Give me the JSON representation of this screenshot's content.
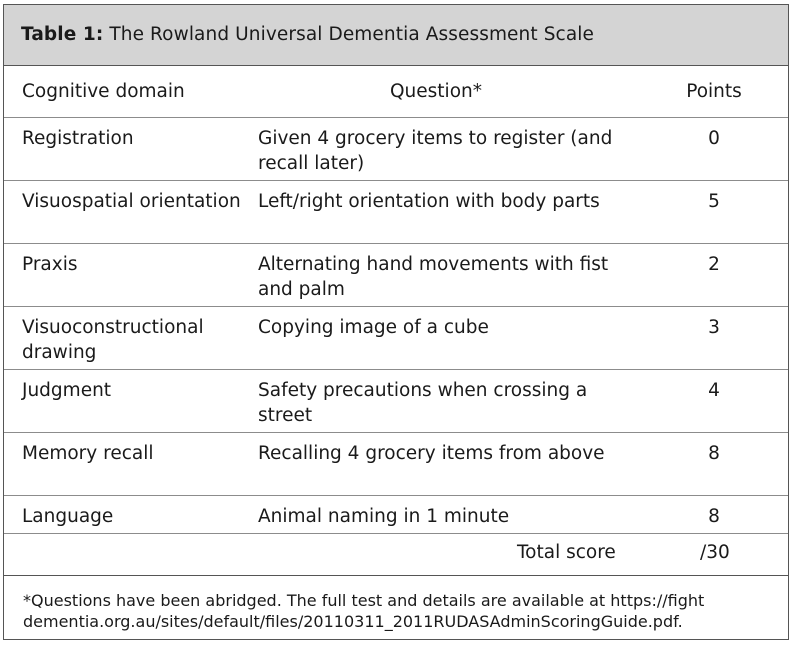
{
  "title": {
    "label": "Table 1:",
    "text": "The Rowland Universal Dementia Assessment Scale"
  },
  "headers": {
    "domain": "Cognitive domain",
    "question": "Question*",
    "points": "Points"
  },
  "rows": [
    {
      "domain": "Registration",
      "question": "Given 4 grocery items to register (and recall later)",
      "points": "0"
    },
    {
      "domain": "Visuospatial orientation",
      "question": "Left/right orientation with body parts",
      "points": "5"
    },
    {
      "domain": "Praxis",
      "question": "Alternating hand movements with fist and palm",
      "points": "2"
    },
    {
      "domain": "Visuoconstructional drawing",
      "question": "Copying image of a cube",
      "points": "3"
    },
    {
      "domain": "Judgment",
      "question": "Safety precautions when crossing a street",
      "points": "4"
    },
    {
      "domain": "Memory recall",
      "question": "Recalling 4 grocery items from above",
      "points": "8"
    },
    {
      "domain": "Language",
      "question": "Animal naming in 1 minute",
      "points": "8"
    }
  ],
  "total": {
    "label": "Total score",
    "value": "/30"
  },
  "footnote": "*Questions have been abridged. The full test and details are available at https://fight dementia.org.au/sites/default/files/20110311_2011RUDASAdminScoringGuide.pdf."
}
